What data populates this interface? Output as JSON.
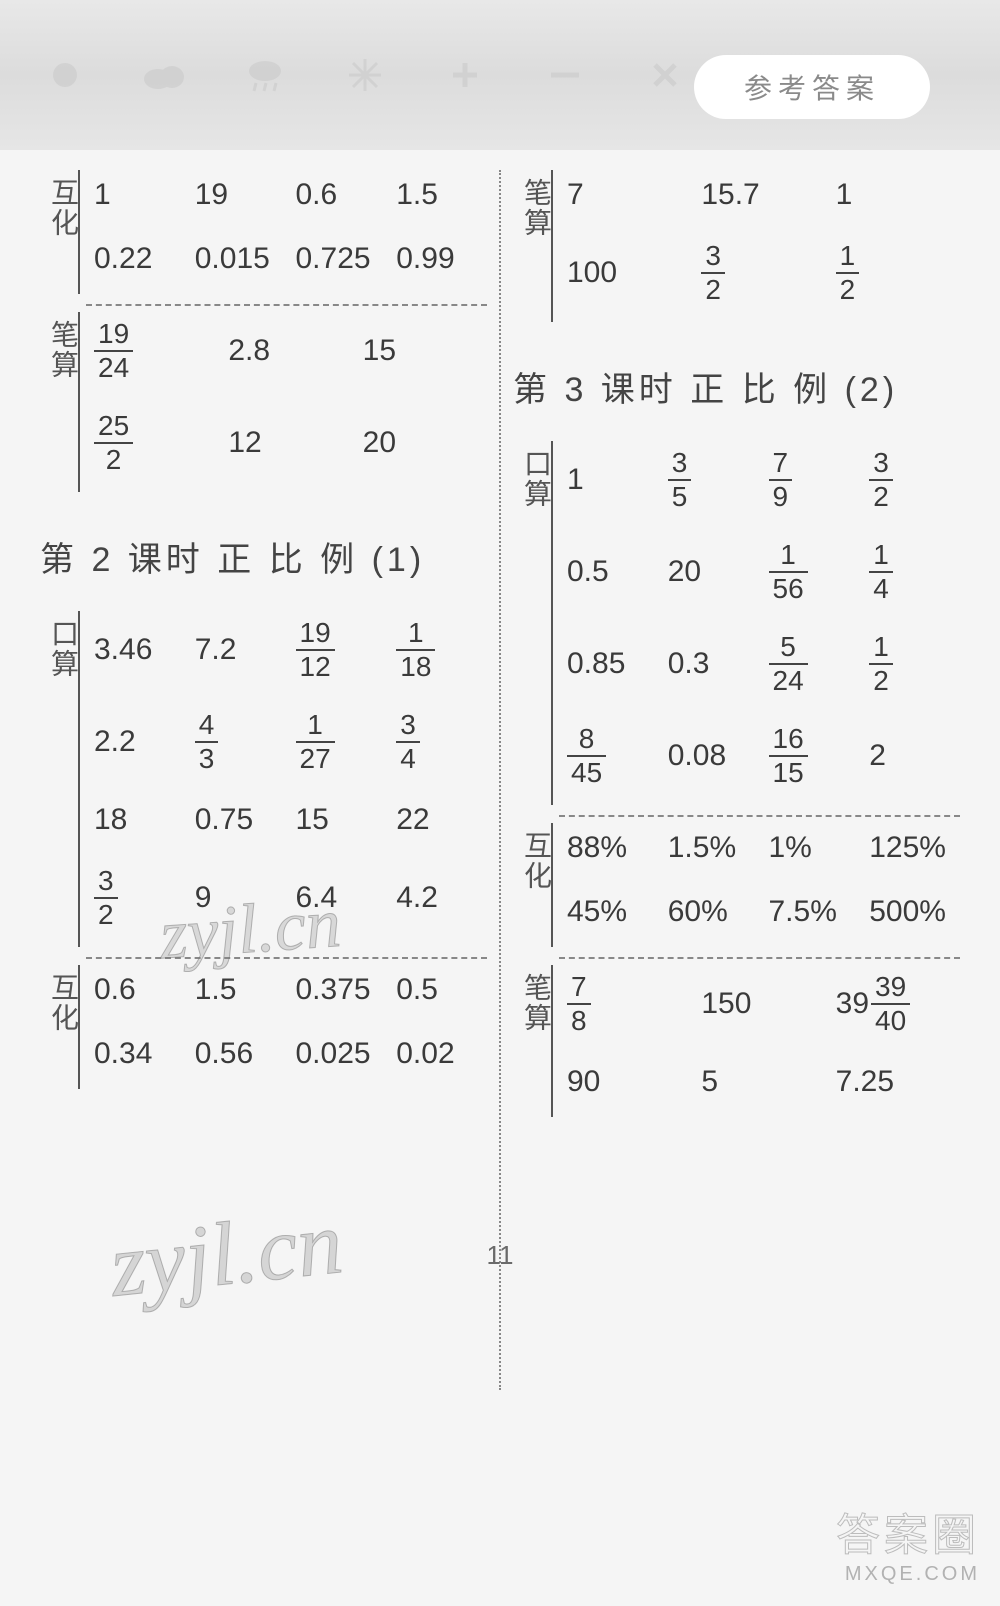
{
  "header": {
    "title": "参考答案",
    "bg_gradient": [
      "#e8e8e8",
      "#dcdcdc",
      "#e6e6e6"
    ],
    "pill_bg": "#ffffff",
    "pill_color": "#8a8a8a",
    "icon_color": "#bdbdbd"
  },
  "colors": {
    "text": "#3a3a3a",
    "label": "#555555",
    "divider": "#888888",
    "background": "#f5f5f5",
    "frac_rule": "#444444"
  },
  "typography": {
    "body_fontsize": 30,
    "title_fontsize": 34,
    "label_fontsize": 28,
    "frac_fontsize": 28
  },
  "labels": {
    "huhua": "互化",
    "bisuan": "笔算",
    "kousuan": "口算"
  },
  "left": {
    "huhua": {
      "cols": 4,
      "rows": [
        [
          "1",
          "19",
          "0.6",
          "1.5"
        ],
        [
          "0.22",
          "0.015",
          "0.725",
          "0.99"
        ]
      ]
    },
    "bisuan": {
      "cols": 3,
      "rows": [
        [
          {
            "frac": [
              19,
              24
            ]
          },
          "2.8",
          "15"
        ],
        [
          {
            "frac": [
              25,
              2
            ]
          },
          "12",
          "20"
        ]
      ]
    },
    "lesson2": {
      "title": "第 2 课时  正 比 例 (1)",
      "kousuan": {
        "cols": 4,
        "rows": [
          [
            "3.46",
            "7.2",
            {
              "frac": [
                19,
                12
              ]
            },
            {
              "frac": [
                1,
                18
              ]
            }
          ],
          [
            "2.2",
            {
              "frac": [
                4,
                3
              ]
            },
            {
              "frac": [
                1,
                27
              ]
            },
            {
              "frac": [
                3,
                4
              ]
            }
          ],
          [
            "18",
            "0.75",
            "15",
            "22"
          ],
          [
            {
              "frac": [
                3,
                2
              ]
            },
            "9",
            "6.4",
            "4.2"
          ]
        ]
      },
      "huhua": {
        "cols": 4,
        "rows": [
          [
            "0.6",
            "1.5",
            "0.375",
            "0.5"
          ],
          [
            "0.34",
            "0.56",
            "0.025",
            "0.02"
          ]
        ]
      }
    }
  },
  "right": {
    "bisuan": {
      "cols": 3,
      "rows": [
        [
          "7",
          "15.7",
          "1"
        ],
        [
          "100",
          {
            "frac": [
              3,
              2
            ]
          },
          {
            "frac": [
              1,
              2
            ]
          }
        ]
      ]
    },
    "lesson3": {
      "title": "第 3 课时  正 比 例 (2)",
      "kousuan": {
        "cols": 4,
        "rows": [
          [
            "1",
            {
              "frac": [
                3,
                5
              ]
            },
            {
              "frac": [
                7,
                9
              ]
            },
            {
              "frac": [
                3,
                2
              ]
            }
          ],
          [
            "0.5",
            "20",
            {
              "frac": [
                1,
                56
              ]
            },
            {
              "frac": [
                1,
                4
              ]
            }
          ],
          [
            "0.85",
            "0.3",
            {
              "frac": [
                5,
                24
              ]
            },
            {
              "frac": [
                1,
                2
              ]
            }
          ],
          [
            {
              "frac": [
                8,
                45
              ]
            },
            "0.08",
            {
              "frac": [
                16,
                15
              ]
            },
            "2"
          ]
        ]
      },
      "huhua": {
        "cols": 4,
        "rows": [
          [
            "88%",
            "1.5%",
            "1%",
            "125%"
          ],
          [
            "45%",
            "60%",
            "7.5%",
            "500%"
          ]
        ]
      },
      "bisuan": {
        "cols": 3,
        "rows": [
          [
            {
              "frac": [
                7,
                8
              ]
            },
            "150",
            {
              "mixed": [
                39,
                39,
                40
              ]
            }
          ],
          [
            "90",
            "5",
            "7.25"
          ]
        ]
      }
    }
  },
  "page_number": "11",
  "watermarks": {
    "wm_text": "zyjl.cn",
    "corner_big": "答案圈",
    "corner_small": "MXQE.COM"
  }
}
